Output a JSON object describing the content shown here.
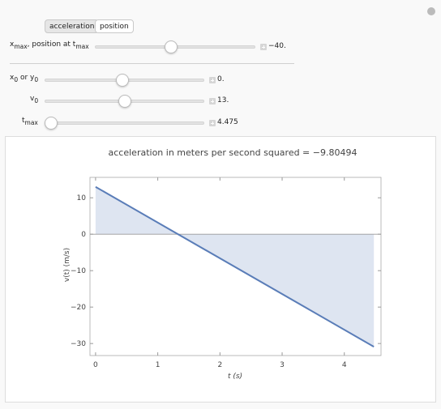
{
  "controls": {
    "tabs": [
      "acceleration",
      "position"
    ],
    "sliders": [
      {
        "label": [
          "x",
          "max",
          ", position at t",
          "max"
        ],
        "value": "−40."
      },
      {
        "label": [
          "x",
          "0",
          " or y",
          "0"
        ],
        "value": "0."
      },
      {
        "label": [
          "v",
          "0"
        ],
        "value": "13."
      },
      {
        "label": [
          "t",
          "max"
        ],
        "value": "4.475"
      }
    ]
  },
  "chart_data": {
    "type": "line",
    "title": "acceleration in meters per second squared = −9.80494",
    "x_label": "t (s)",
    "y_label": "v(t) (m/s)",
    "x": [
      0,
      4.475
    ],
    "values": [
      13,
      -30.88
    ],
    "color": "#5a7db8",
    "fill": true,
    "xlim": [
      -0.09,
      4.59
    ],
    "ylim": [
      -33.3,
      15.6
    ],
    "xticks": [
      0,
      1,
      2,
      3,
      4
    ],
    "yticks": [
      10,
      0,
      {
        "value": -10,
        "label": "−10"
      },
      {
        "value": -20,
        "label": "−20"
      },
      {
        "value": -30,
        "label": "−30"
      }
    ]
  }
}
